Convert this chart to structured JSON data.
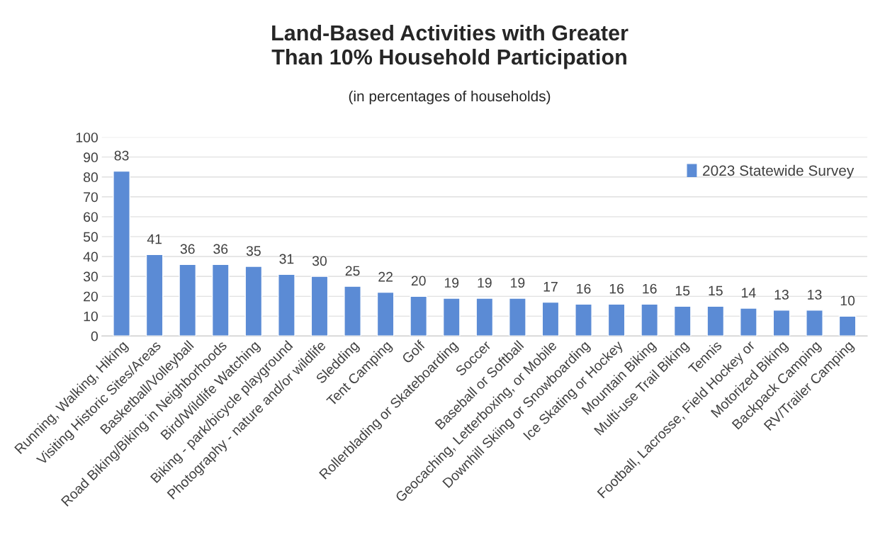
{
  "chart_data": {
    "type": "bar",
    "title": "Land-Based Activities with Greater\nThan 10% Household Participation",
    "subtitle": "(in percentages of households)",
    "categories": [
      "Running, Walking, Hiking",
      "Visiting Historic Sites/Areas",
      "Basketball/Volleyball",
      "Road Biking/Biking in Neighborhoods",
      "Bird/Wildlife Watching",
      "Biking - park/bicycle playground",
      "Photography - nature and/or wildlife",
      "Sledding",
      "Tent Camping",
      "Golf",
      "Rollerblading or Skateboarding",
      "Soccer",
      "Baseball or Softball",
      "Geocaching, Letterboxing, or Mobile",
      "Downhill Skiing or Snowboarding",
      "Ice Skating or Hockey",
      "Mountain Biking",
      "Multi-use Trail Biking",
      "Tennis",
      "Football, Lacrosse, Field Hockey or",
      "Motorized Biking",
      "Backpack Camping",
      "RV/Trailer Camping"
    ],
    "series": [
      {
        "name": "2023 Statewide Survey",
        "color": "#5b8bd5",
        "values": [
          83,
          41,
          36,
          36,
          35,
          31,
          30,
          25,
          22,
          20,
          19,
          19,
          19,
          17,
          16,
          16,
          16,
          15,
          15,
          14,
          13,
          13,
          10
        ]
      }
    ],
    "ylim": [
      0,
      100
    ],
    "yticks": [
      0,
      10,
      20,
      30,
      40,
      50,
      60,
      70,
      80,
      90,
      100
    ],
    "grid": "y",
    "legend": "top right",
    "data_labels": true
  }
}
